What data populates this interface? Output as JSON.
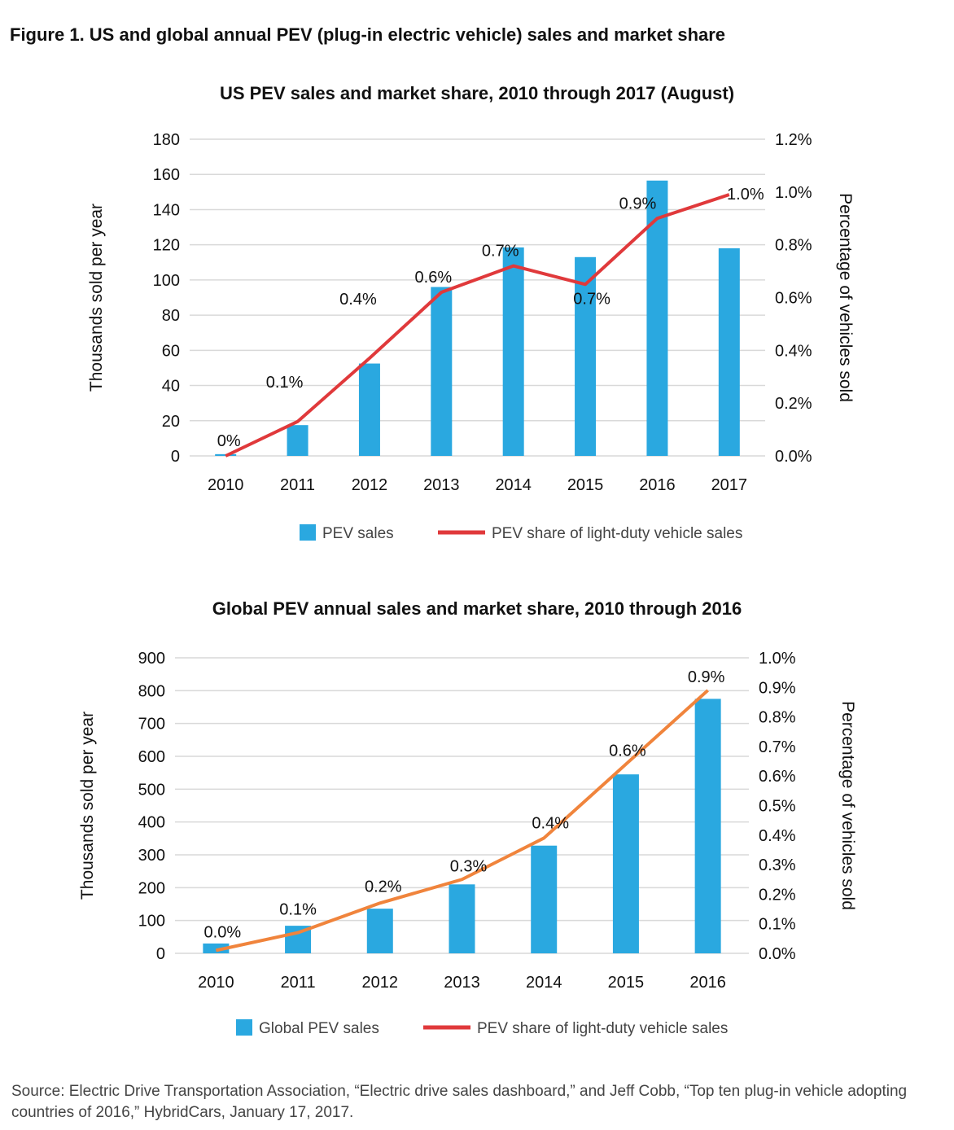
{
  "figure_title": "Figure 1. US and global annual PEV (plug-in electric vehicle) sales and market share",
  "source": "Source: Electric Drive Transportation Association, “Electric drive sales dashboard,” and Jeff Cobb, “Top ten plug-in vehicle adopting countries of 2016,” HybridCars, January 17, 2017.",
  "colors": {
    "bar": "#2aa8e0",
    "us_line": "#e0393b",
    "global_line": "#f0843c",
    "legend_line": "#e0393b",
    "grid": "#d9d9d9"
  },
  "chart_data": [
    {
      "type": "bar",
      "title": "US PEV sales and market share, 2010 through 2017 (August)",
      "categories": [
        "2010",
        "2011",
        "2012",
        "2013",
        "2014",
        "2015",
        "2016",
        "2017"
      ],
      "ylabel": "Thousands sold per year",
      "y2label": "Percentage of vehicles sold",
      "ylim": [
        0,
        180
      ],
      "yticks": [
        "0",
        "20",
        "40",
        "60",
        "80",
        "100",
        "120",
        "140",
        "160",
        "180"
      ],
      "y2lim": [
        0,
        1.2
      ],
      "y2ticks": [
        "0.0%",
        "0.2%",
        "0.4%",
        "0.6%",
        "0.8%",
        "1.0%",
        "1.2%"
      ],
      "grid": true,
      "legend_position": "bottom",
      "series": [
        {
          "name": "PEV sales",
          "type": "bar",
          "axis": "left",
          "values": [
            1,
            17.5,
            52.5,
            96,
            118.5,
            113,
            156.5,
            118
          ]
        },
        {
          "name": "PEV share of light-duty vehicle sales",
          "type": "line",
          "axis": "right",
          "values": [
            0.0,
            0.13,
            0.37,
            0.62,
            0.72,
            0.65,
            0.9,
            0.99
          ],
          "labels": [
            "0%",
            "0.1%",
            "0.4%",
            "0.6%",
            "0.7%",
            "0.7%",
            "0.9%",
            "1.0%"
          ]
        }
      ]
    },
    {
      "type": "bar",
      "title": "Global PEV annual sales and market share, 2010 through 2016",
      "categories": [
        "2010",
        "2011",
        "2012",
        "2013",
        "2014",
        "2015",
        "2016"
      ],
      "ylabel": "Thousands sold per year",
      "y2label": "Percentage of vehicles sold",
      "ylim": [
        0,
        900
      ],
      "yticks": [
        "0",
        "100",
        "200",
        "300",
        "400",
        "500",
        "600",
        "700",
        "800",
        "900"
      ],
      "y2lim": [
        0,
        1.0
      ],
      "y2ticks": [
        "0.0%",
        "0.1%",
        "0.2%",
        "0.3%",
        "0.4%",
        "0.5%",
        "0.6%",
        "0.7%",
        "0.8%",
        "0.9%",
        "1.0%"
      ],
      "grid": true,
      "legend_position": "bottom",
      "series": [
        {
          "name": "Global PEV sales",
          "type": "bar",
          "axis": "left",
          "values": [
            30,
            84,
            136,
            210,
            328,
            545,
            775
          ]
        },
        {
          "name": "PEV share of light-duty vehicle sales",
          "type": "line",
          "axis": "right",
          "values": [
            0.01,
            0.07,
            0.17,
            0.25,
            0.39,
            0.64,
            0.89
          ],
          "labels": [
            "0.0%",
            "0.1%",
            "0.2%",
            "0.3%",
            "0.4%",
            "0.6%",
            "0.9%"
          ]
        }
      ]
    }
  ]
}
